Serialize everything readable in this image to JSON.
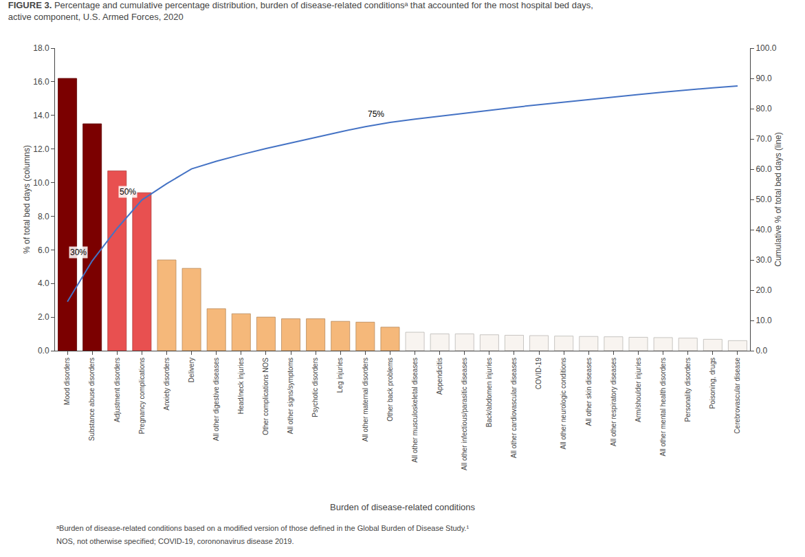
{
  "chart_data": {
    "type": "bar",
    "title": "FIGURE 3.",
    "subtitle": "Percentage and cumulative percentage distribution, burden of disease-related conditionsᵃ that accounted for the most hospital bed days, active component, U.S. Armed Forces, 2020",
    "xlabel": "Burden of disease-related conditions",
    "ylabel": "% of total bed days (columns)",
    "y2label": "Cumulative % of total bed days (line)",
    "categories": [
      "Mood disorders",
      "Substance abuse disorders",
      "Adjustment disorders",
      "Pregnancy complications",
      "Anxiety disorders",
      "Delivery",
      "All other digestive diseases",
      "Head/neck injuries",
      "Other complications NOS",
      "All other signs/symptoms",
      "Psychotic disorders",
      "Leg injuries",
      "All other maternal disorders",
      "Other back problems",
      "All other musculoskeletal diseases",
      "Appendicitis",
      "All other infectious/parasitic diseases",
      "Back/abdomen injuries",
      "All other cardiovascular diseases",
      "COVID-19",
      "All other neurologic conditions",
      "All other skin diseases",
      "All other respiratory diseases",
      "Arm/shoulder injuries",
      "All other mental health disorders",
      "Personality disorders",
      "Poisoning, drugs",
      "Cerebrovascular disease"
    ],
    "series": [
      {
        "type": "bar",
        "values": [
          16.2,
          13.5,
          10.7,
          9.4,
          5.4,
          4.9,
          2.5,
          2.2,
          2.0,
          1.9,
          1.9,
          1.75,
          1.7,
          1.4,
          1.1,
          1.0,
          1.0,
          0.95,
          0.92,
          0.9,
          0.87,
          0.85,
          0.83,
          0.8,
          0.78,
          0.75,
          0.68,
          0.6
        ],
        "colors": [
          "#7B0000",
          "#7B0000",
          "#E85050",
          "#E85050",
          "#F5B87A",
          "#F5B87A",
          "#F5B87A",
          "#F5B87A",
          "#F5B87A",
          "#F5B87A",
          "#F5B87A",
          "#F5B87A",
          "#F5B87A",
          "#F5B87A",
          "#F8F4F0",
          "#F8F4F0",
          "#F8F4F0",
          "#F8F4F0",
          "#F8F4F0",
          "#F8F4F0",
          "#F8F4F0",
          "#F8F4F0",
          "#F8F4F0",
          "#F8F4F0",
          "#F8F4F0",
          "#F8F4F0",
          "#F8F4F0",
          "#F8F4F0"
        ]
      },
      {
        "type": "line",
        "axis": "y2",
        "color": "#4472C4",
        "values": [
          16.2,
          29.7,
          40.4,
          49.8,
          55.2,
          60.1,
          62.6,
          64.8,
          66.8,
          68.7,
          70.6,
          72.35,
          74.05,
          75.45,
          76.55,
          77.55,
          78.55,
          79.5,
          80.42,
          81.32,
          82.19,
          83.04,
          83.87,
          84.67,
          85.45,
          86.2,
          86.88,
          87.48
        ]
      }
    ],
    "ylim": [
      0,
      18.0
    ],
    "yticks": [
      {
        "value": 0,
        "label": "0.0"
      },
      {
        "value": 2,
        "label": "2.0"
      },
      {
        "value": 4,
        "label": "4.0"
      },
      {
        "value": 6,
        "label": "6.0"
      },
      {
        "value": 8,
        "label": "8.0"
      },
      {
        "value": 10,
        "label": "10.0"
      },
      {
        "value": 12,
        "label": "12.0"
      },
      {
        "value": 14,
        "label": "14.0"
      },
      {
        "value": 16,
        "label": "16.0"
      },
      {
        "value": 18,
        "label": "18.0"
      }
    ],
    "y2lim": [
      0,
      100.0
    ],
    "y2ticks": [
      {
        "value": 0,
        "label": "0.0"
      },
      {
        "value": 10,
        "label": "10.0"
      },
      {
        "value": 20,
        "label": "20.0"
      },
      {
        "value": 30,
        "label": "30.0"
      },
      {
        "value": 40,
        "label": "40.0"
      },
      {
        "value": 50,
        "label": "50.0"
      },
      {
        "value": 60,
        "label": "60.0"
      },
      {
        "value": 70,
        "label": "70.0"
      },
      {
        "value": 80,
        "label": "80.0"
      },
      {
        "value": 90,
        "label": "90.0"
      },
      {
        "value": 100,
        "label": "100.0"
      }
    ],
    "annotations": [
      {
        "text": "30%",
        "category": "Substance abuse disorders"
      },
      {
        "text": "50%",
        "category": "Pregnancy complications"
      },
      {
        "text": "75%",
        "category": "Other back problems"
      }
    ],
    "footnotes": [
      "ᵃBurden of disease-related conditions based on a modified version of those defined in the Global Burden of Disease Study.¹",
      "NOS, not otherwise specified; COVID-19, corononavirus disease 2019."
    ],
    "grid": false
  }
}
